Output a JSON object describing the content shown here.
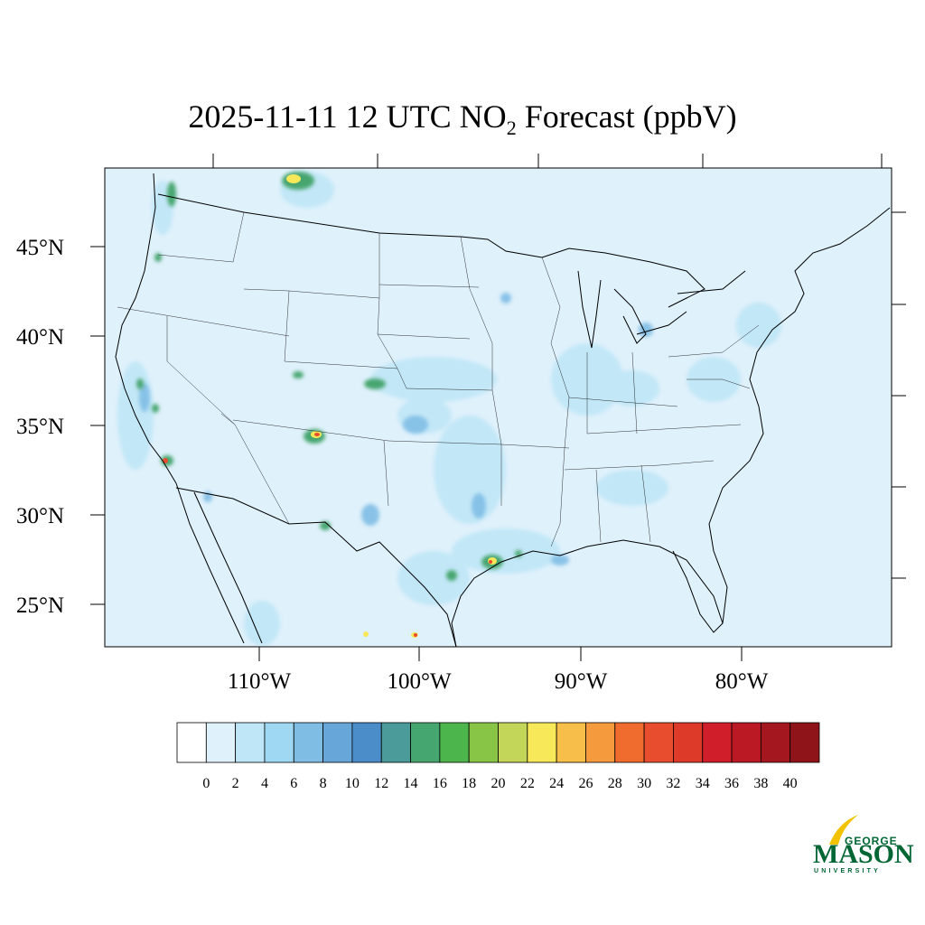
{
  "title": {
    "prefix": "2025-11-11 12 UTC NO",
    "subscript": "2",
    "suffix": " Forecast (ppbV)"
  },
  "lat_labels": [
    "45°N",
    "40°N",
    "35°N",
    "30°N",
    "25°N"
  ],
  "lon_labels": [
    "110°W",
    "100°W",
    "90°W",
    "80°W"
  ],
  "colorbar": {
    "labels": [
      "0",
      "2",
      "4",
      "6",
      "8",
      "10",
      "12",
      "14",
      "16",
      "18",
      "20",
      "22",
      "24",
      "26",
      "28",
      "30",
      "32",
      "34",
      "36",
      "38",
      "40"
    ],
    "colors": [
      "#ffffff",
      "#dff1fb",
      "#bfe6f7",
      "#9fd8f2",
      "#80bde5",
      "#66a6d9",
      "#4a8dc8",
      "#4a9b99",
      "#46a66f",
      "#4cb54c",
      "#88c446",
      "#c4d65a",
      "#f7e85a",
      "#f7bf4a",
      "#f59a3d",
      "#f06b2e",
      "#e84e2e",
      "#de3a2a",
      "#d01f2a",
      "#bb1a24",
      "#a5171f",
      "#8e1419"
    ]
  },
  "logo": {
    "line1": "GEORGE",
    "line2": "MASON",
    "line3": "UNIVERSITY",
    "color": "#006633",
    "accent": "#f2c200"
  },
  "map": {
    "background_color": "#dff1fb",
    "hotspot_colors": {
      "light": "#bfe6f7",
      "mid": "#80bde5",
      "green": "#46a66f",
      "yellow": "#f7e85a",
      "red": "#e84e2e"
    }
  }
}
